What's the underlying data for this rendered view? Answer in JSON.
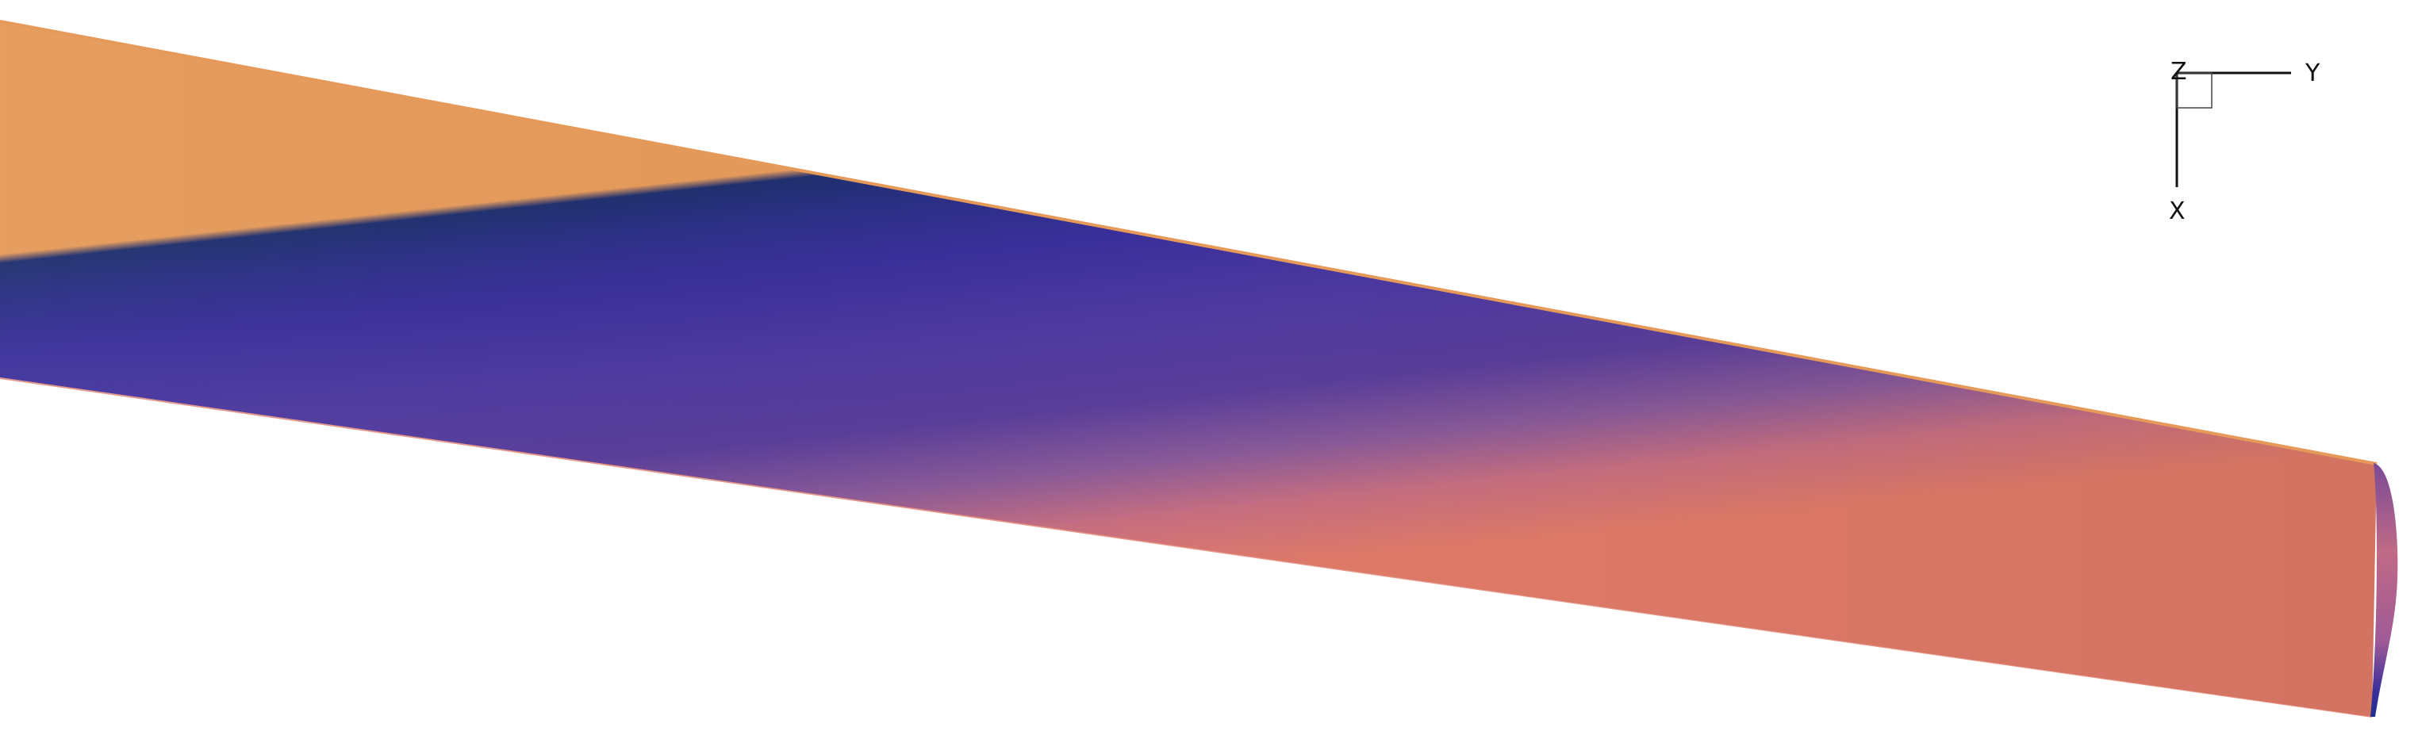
{
  "view": {
    "type": "surface-contour-render",
    "colormap": [
      "#1f2f6e",
      "#3a2f9a",
      "#4e3aa0",
      "#5a3e9a",
      "#8a5a98",
      "#c66e80",
      "#e07a68"
    ],
    "leading_edge_color": "#e59a5a",
    "background": "#ffffff"
  },
  "axes_triad": {
    "z_label": "Z",
    "y_label": "Y",
    "x_label": "X",
    "line_color": "#111111"
  }
}
